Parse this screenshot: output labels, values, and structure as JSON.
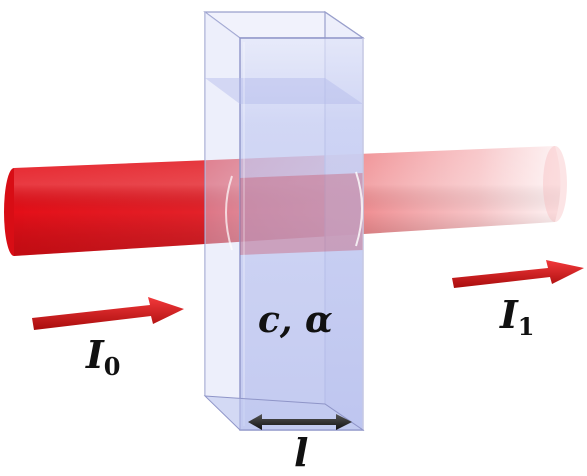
{
  "labels": {
    "incident_symbol": "I",
    "incident_subscript": "0",
    "transmitted_symbol": "I",
    "transmitted_subscript": "1",
    "cuvette_params": "c, α",
    "path_length": "l"
  },
  "colors": {
    "beam": "#e8141e",
    "arrow": "#d41414",
    "cuvette_fill": "#c9d2f5",
    "cuvette_edge": "#8f95c8"
  }
}
